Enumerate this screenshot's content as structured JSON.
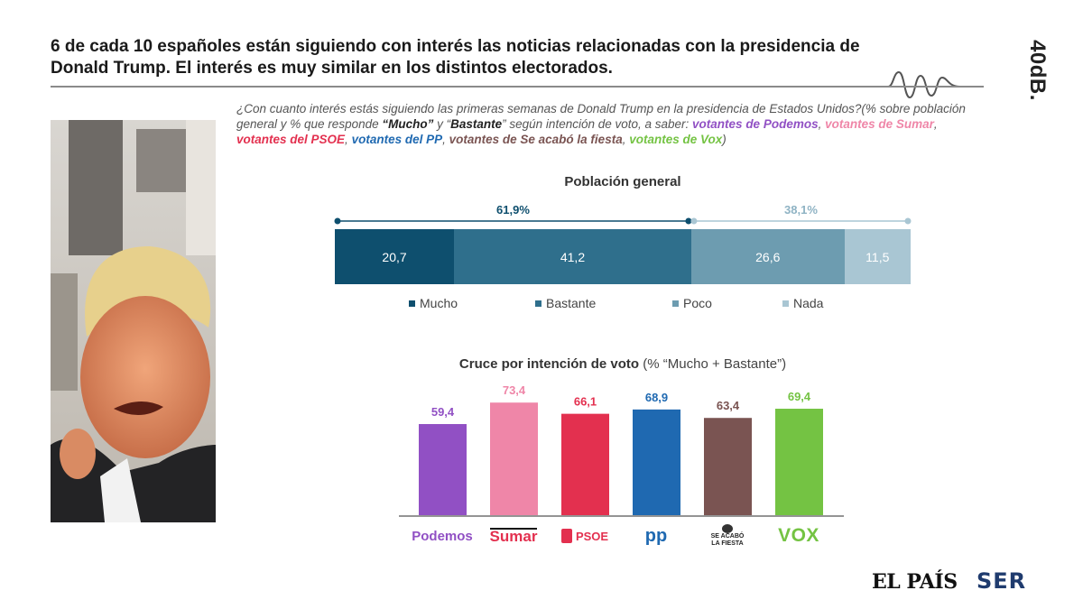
{
  "headline": "6 de cada 10 españoles están siguiendo con interés las noticias relacionadas con la presidencia de Donald Trump. El interés es muy similar en los distintos electorados.",
  "brand": "40dB.",
  "question": {
    "part1": "¿Con cuanto interés estás siguiendo las primeras semanas de Donald Trump en la presidencia de Estados Unidos?(% sobre población general y % que responde ",
    "mucho": "“Mucho”",
    "part2": "  y “",
    "bastante": "Bastante",
    "part3": "” según intención de voto, a saber: ",
    "v_podemos": "votantes de Podemos",
    "sep1": ",",
    "v_sumar": "votantes de Sumar",
    "sep2": ", ",
    "v_psoe": "votantes del PSOE",
    "sep3": ", ",
    "v_pp": "votantes del PP",
    "sep4": ", ",
    "v_salf": "votantes de Se acabó la fiesta",
    "sep5": ", ",
    "v_vox": "votantes de Vox",
    "close": ")"
  },
  "colors": {
    "mucho": "#0e4f6e",
    "bastante": "#2f6f8c",
    "poco": "#6d9cb0",
    "nada": "#a9c6d3",
    "podemos": "#9150c4",
    "sumar": "#ef86a8",
    "psoe": "#e3304f",
    "pp": "#1f69b1",
    "salf": "#7a5452",
    "vox": "#74c343"
  },
  "chart_data": [
    {
      "type": "bar",
      "orientation": "horizontal-stacked",
      "title": "Población general",
      "categories": [
        "Población general"
      ],
      "series": [
        {
          "name": "Mucho",
          "values": [
            20.7
          ],
          "label": "20,7"
        },
        {
          "name": "Bastante",
          "values": [
            41.2
          ],
          "label": "41,2"
        },
        {
          "name": "Poco",
          "values": [
            26.6
          ],
          "label": "26,6"
        },
        {
          "name": "Nada",
          "values": [
            11.5
          ],
          "label": "11,5"
        }
      ],
      "annotations": [
        {
          "text": "61,9%",
          "value": 61.9,
          "covers": [
            "Mucho",
            "Bastante"
          ]
        },
        {
          "text": "38,1%",
          "value": 38.1,
          "covers": [
            "Poco",
            "Nada"
          ]
        }
      ],
      "legend": "bottom"
    },
    {
      "type": "bar",
      "title": "Cruce por intención de voto",
      "subtitle": "(% “Mucho + Bastante”)",
      "categories": [
        "Podemos",
        "Sumar",
        "PSOE",
        "PP",
        "Se acabó la fiesta",
        "VOX"
      ],
      "values": [
        59.4,
        73.4,
        66.1,
        68.9,
        63.4,
        69.4
      ],
      "value_labels": [
        "59,4",
        "73,4",
        "66,1",
        "68,9",
        "63,4",
        "69,4"
      ],
      "ylim": [
        0,
        100
      ]
    }
  ],
  "logos": {
    "podemos": "Podemos",
    "sumar": "Sumar",
    "psoe": "PSOE",
    "pp": "pp",
    "salf_line1": "SE ACABÓ",
    "salf_line2": "LA FIESTA",
    "vox": "VOX"
  },
  "footer": {
    "elpais": "EL PAÍS",
    "ser": "SER"
  }
}
